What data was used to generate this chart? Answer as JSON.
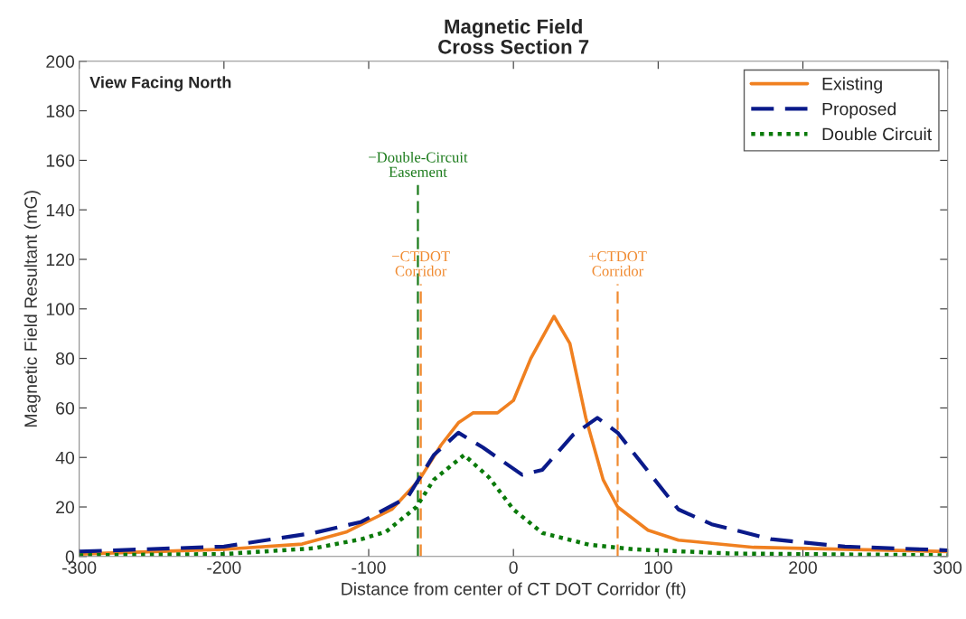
{
  "chart_data": {
    "type": "line",
    "title": "Magnetic Field\nCross Section 7",
    "xlabel": "Distance from center of CT DOT Corridor (ft)",
    "ylabel": "Magnetic Field Resultant (mG)",
    "xlim": [
      -300,
      300
    ],
    "xticks": [
      -300,
      -200,
      -100,
      0,
      100,
      200,
      300
    ],
    "ylim": [
      0,
      200
    ],
    "yticks": [
      0,
      20,
      40,
      60,
      80,
      100,
      120,
      140,
      160,
      180,
      200
    ],
    "grid": false,
    "legend": "top right",
    "annotations": [
      "View Facing North"
    ],
    "ref_lines": [
      {
        "axis": "x",
        "value": -66,
        "label": "−Double-Circuit\nEasement",
        "color": "#1a7a1a",
        "line_style": "dashed"
      },
      {
        "axis": "x",
        "value": -64,
        "label": "−CTDOT\nCorridor",
        "color": "#f08a30",
        "line_style": "dashed"
      },
      {
        "axis": "x",
        "value": 72,
        "label": "+CTDOT\nCorridor",
        "color": "#f08a30",
        "line_style": "dashed"
      }
    ],
    "series": [
      {
        "name": "Existing",
        "color": "#f08020",
        "line_style": "solid",
        "x": [
          -300,
          -200,
          -146,
          -115,
          -84,
          -65,
          -50,
          -38,
          -28,
          -11,
          0,
          12,
          28,
          39,
          50,
          62,
          72,
          93,
          114,
          166,
          229,
          300
        ],
        "values": [
          1,
          2.9,
          5,
          10,
          19,
          31,
          45,
          54,
          58,
          58,
          63,
          80,
          97,
          86,
          56,
          31,
          20,
          10.6,
          6.6,
          3.7,
          2.9,
          2
        ]
      },
      {
        "name": "Proposed",
        "color": "#0a1a8a",
        "line_style": "dashed",
        "x": [
          -300,
          -200,
          -138,
          -105,
          -73,
          -55,
          -38,
          -21,
          6,
          20,
          41,
          58,
          72,
          103,
          114,
          137,
          178,
          229,
          300
        ],
        "values": [
          2,
          4,
          9.5,
          14,
          24,
          41,
          50,
          44,
          33,
          35,
          49,
          56,
          50,
          27,
          19,
          13,
          7,
          4,
          2.5
        ]
      },
      {
        "name": "Double Circuit",
        "color": "#0a7a0a",
        "line_style": "dotted",
        "x": [
          -300,
          -200,
          -138,
          -105,
          -88,
          -67,
          -55,
          -34,
          -17,
          0,
          20,
          52,
          83,
          150,
          300
        ],
        "values": [
          0.5,
          1,
          3.3,
          7,
          10,
          20,
          31,
          41,
          32,
          19,
          9.5,
          4.8,
          2.9,
          1.2,
          0.5
        ]
      }
    ]
  }
}
